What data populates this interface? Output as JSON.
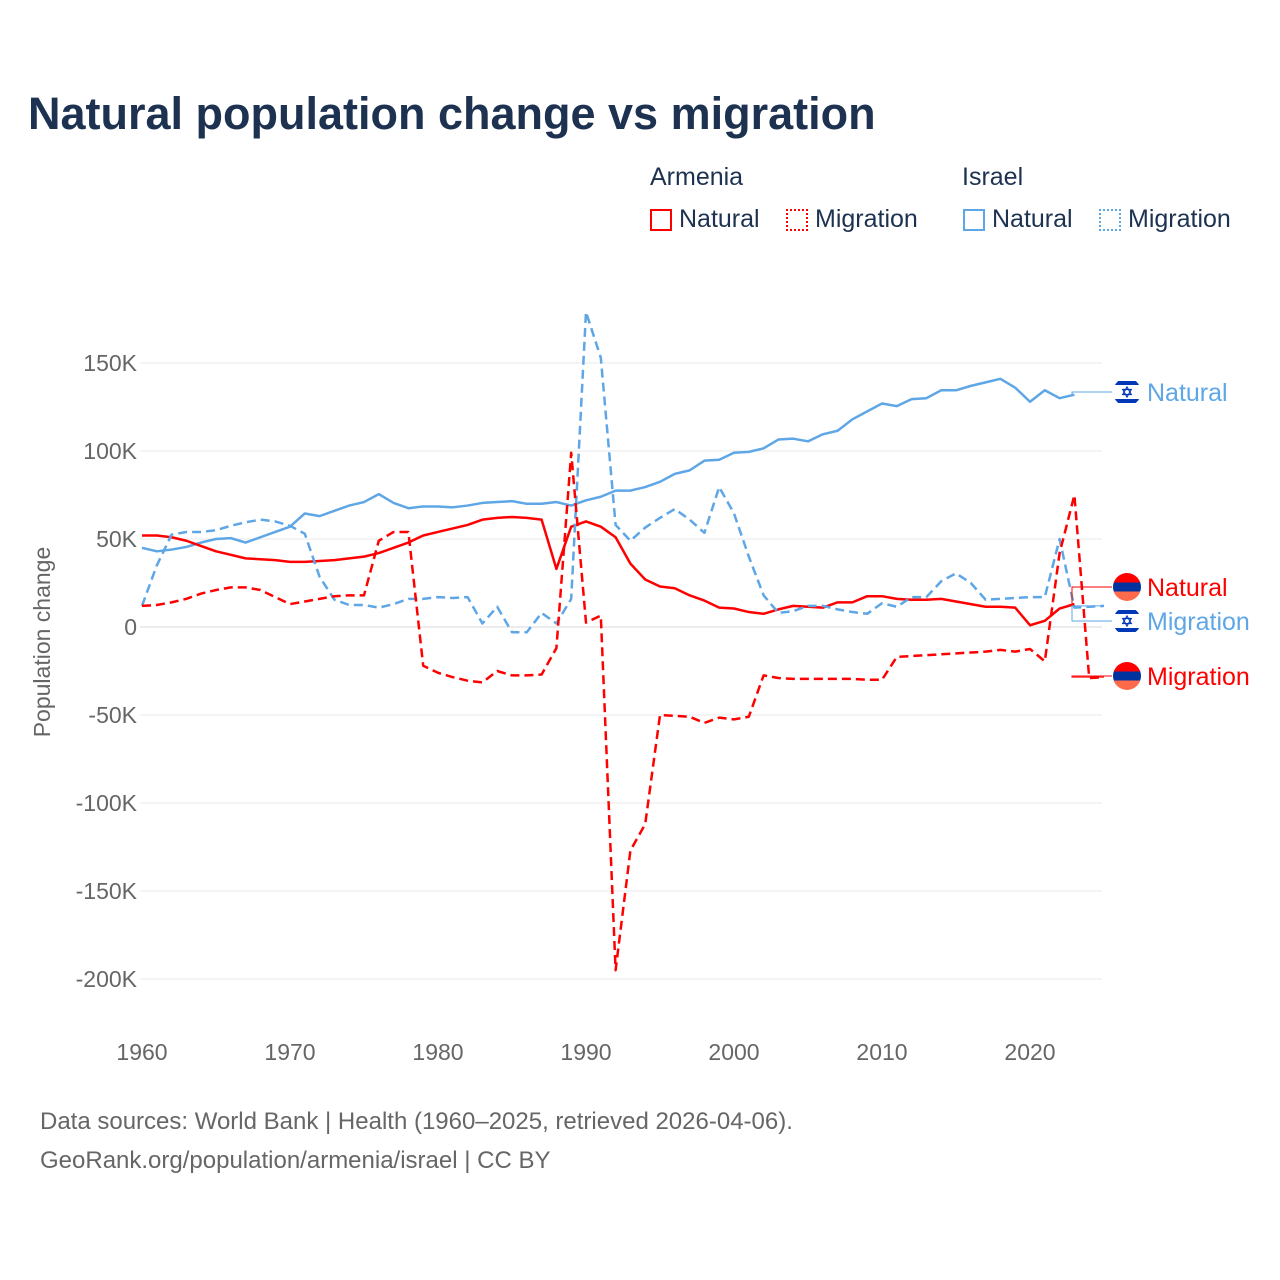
{
  "title": "Natural population change vs migration",
  "legend": {
    "groups": [
      {
        "name": "Armenia",
        "color": "#ff0000",
        "items": [
          "Natural",
          "Migration"
        ]
      },
      {
        "name": "Israel",
        "color": "#5ea6e6",
        "items": [
          "Natural",
          "Migration"
        ]
      }
    ]
  },
  "footer": {
    "line1": "Data sources: World Bank | Health (1960–2025, retrieved 2026-04-06).",
    "line2": "GeoRank.org/population/armenia/israel | CC BY"
  },
  "chart_data": {
    "type": "line",
    "title": "Natural population change vs migration",
    "xlabel": "",
    "ylabel": "Population change",
    "xlim": [
      1960,
      2025
    ],
    "ylim": [
      -200000,
      180000
    ],
    "xticks": [
      1960,
      1970,
      1980,
      1990,
      2000,
      2010,
      2020
    ],
    "xtick_labels": [
      "1960",
      "1970",
      "1980",
      "1990",
      "2000",
      "2010",
      "2020"
    ],
    "yticks": [
      -200000,
      -150000,
      -100000,
      -50000,
      0,
      50000,
      100000,
      150000
    ],
    "ytick_labels": [
      "-200K",
      "-150K",
      "-100K",
      "-50K",
      "0",
      "50K",
      "100K",
      "150K"
    ],
    "grid": true,
    "legend_position": "top-right",
    "unit": "thousands",
    "series": [
      {
        "name": "Israel Natural",
        "end_label": "Natural",
        "country": "Israel",
        "color": "#5ea6e6",
        "dash": false,
        "start": 1960,
        "values": [
          45,
          43,
          44,
          45.5,
          48,
          50,
          50.5,
          48,
          51,
          54,
          57,
          64.5,
          63,
          66,
          69,
          71,
          75.5,
          70.5,
          67.5,
          68.5,
          68.5,
          68,
          69,
          70.5,
          71,
          71.5,
          70,
          70,
          71,
          69,
          72,
          74,
          77.5,
          77.5,
          79.5,
          82.5,
          87,
          89,
          94.5,
          95,
          99,
          99.5,
          101.5,
          106.5,
          107,
          105.5,
          109.5,
          111.5,
          118,
          122.5,
          127,
          125.5,
          129.5,
          130,
          134.5,
          134.5,
          137,
          139,
          141,
          136,
          128,
          134.5,
          130,
          132
        ]
      },
      {
        "name": "Armenia Natural",
        "end_label": "Natural",
        "country": "Armenia",
        "color": "#ff0000",
        "dash": false,
        "start": 1960,
        "values": [
          52,
          52,
          51,
          49,
          46,
          43,
          41,
          39,
          38.5,
          38,
          37,
          37,
          37.5,
          38,
          39,
          40,
          42,
          45,
          48,
          52,
          54,
          56,
          58,
          61,
          62,
          62.5,
          62,
          61,
          33,
          57,
          60,
          57,
          51,
          36,
          27,
          23,
          22,
          18,
          15,
          11,
          10.5,
          8.5,
          7.5,
          10,
          12,
          11.5,
          11,
          14,
          14,
          17.5,
          17.5,
          16,
          15.5,
          15.5,
          16,
          14.5,
          13,
          11.5,
          11.5,
          11,
          1,
          3.5,
          10.5,
          13
        ]
      },
      {
        "name": "Israel Migration",
        "end_label": "Migration",
        "country": "Israel",
        "color": "#5ea6e6",
        "dash": true,
        "start": 1960,
        "values": [
          12,
          35,
          52.5,
          54,
          54,
          55,
          57.5,
          59.5,
          61,
          60,
          57.5,
          53,
          28.5,
          15.5,
          12.5,
          12.5,
          11,
          13,
          16,
          16,
          17,
          16.5,
          17,
          2,
          11.5,
          -3,
          -3,
          8,
          2,
          16,
          179,
          153,
          58,
          49,
          56.5,
          62,
          67,
          61,
          53.5,
          79.5,
          64.5,
          40,
          18,
          8,
          9,
          12,
          12,
          10,
          8.5,
          7.5,
          13.5,
          11.5,
          17,
          17,
          26,
          30.5,
          25,
          15.5,
          16,
          16.5,
          17,
          17,
          50,
          11,
          11.5,
          12
        ]
      },
      {
        "name": "Armenia Migration",
        "end_label": "Migration",
        "country": "Armenia",
        "color": "#ff0000",
        "dash": true,
        "start": 1960,
        "values": [
          12,
          12.5,
          14,
          16,
          19,
          21,
          22.5,
          22.5,
          21,
          17,
          13,
          14.5,
          16,
          17.5,
          18,
          18,
          49,
          54,
          54,
          -22,
          -26,
          -28.5,
          -30.5,
          -31.5,
          -25,
          -27.5,
          -27.5,
          -27,
          -12,
          99,
          2.5,
          6.5,
          -195,
          -127,
          -112,
          -50,
          -50.5,
          -51,
          -54.5,
          -51.5,
          -52.5,
          -51,
          -27.5,
          -29,
          -29.5,
          -29.5,
          -29.5,
          -29.5,
          -29.5,
          -30,
          -30,
          -17,
          -16.5,
          -16,
          -15.5,
          -15,
          -14.5,
          -14,
          -13,
          -14,
          -12.5,
          -19.5,
          42,
          75,
          -29,
          -28.5
        ]
      }
    ]
  }
}
